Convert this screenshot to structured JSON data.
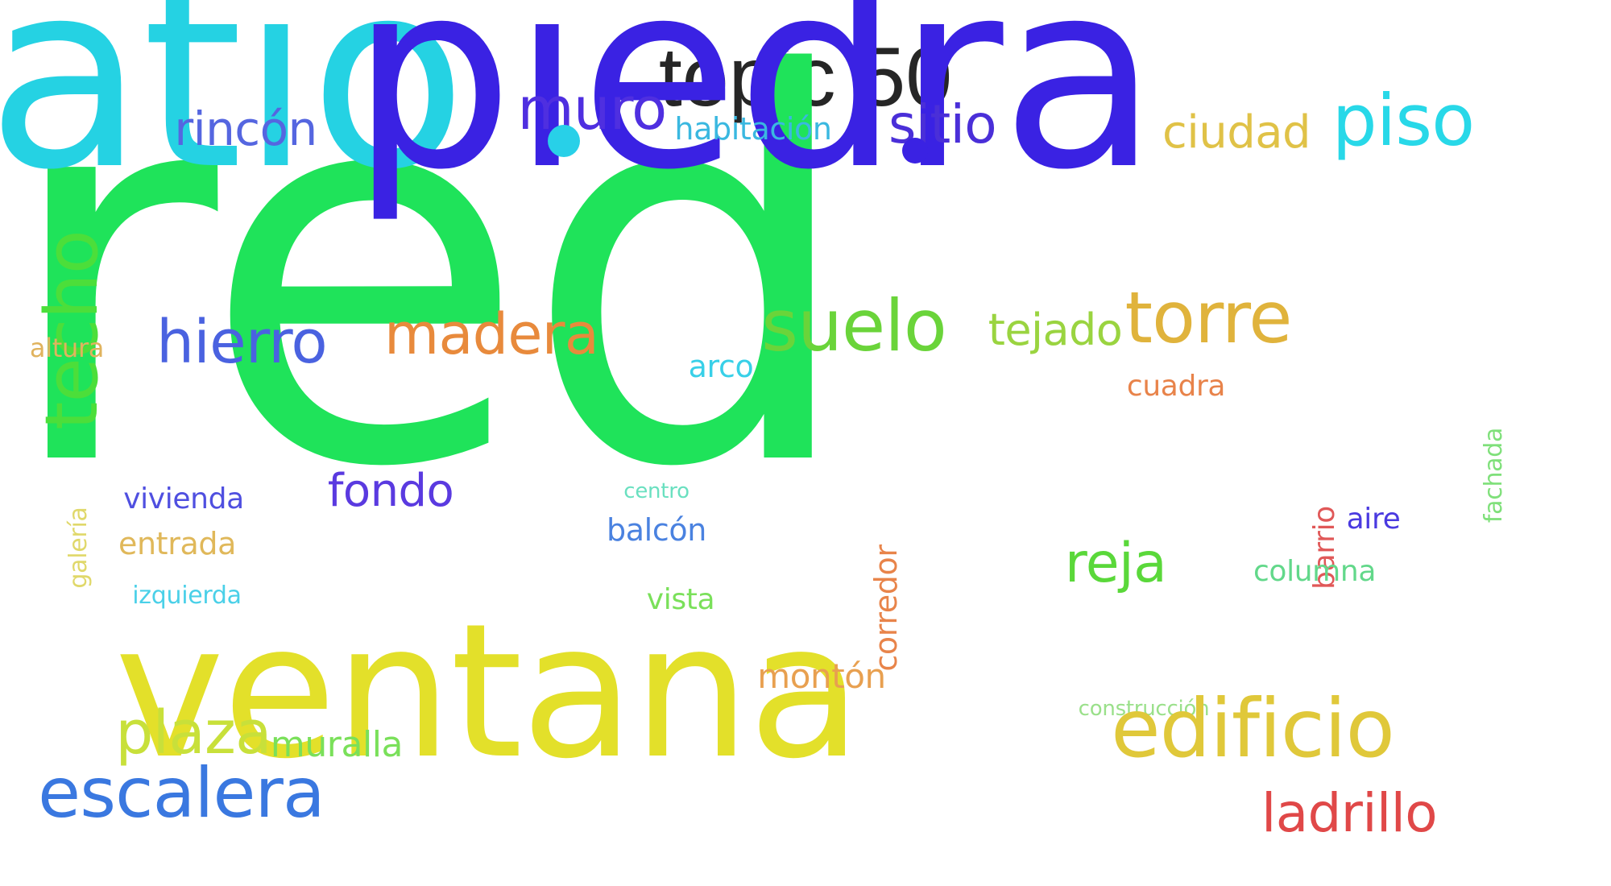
{
  "title": "topic 50",
  "words": [
    {
      "text": "pared",
      "color": "#1fe35a"
    },
    {
      "text": "patio",
      "color": "#25d2e3"
    },
    {
      "text": "piedra",
      "color": "#3a22e3"
    },
    {
      "text": "ventana",
      "color": "#e3e02a"
    },
    {
      "text": "techo",
      "color": "#4cde3a"
    },
    {
      "text": "rincón",
      "color": "#5566e0"
    },
    {
      "text": "muro",
      "color": "#4f2fe0"
    },
    {
      "text": "habitación",
      "color": "#3ab8e0"
    },
    {
      "text": "sitio",
      "color": "#4a2fd8"
    },
    {
      "text": "ciudad",
      "color": "#e0c247"
    },
    {
      "text": "piso",
      "color": "#28d8e8"
    },
    {
      "text": "hierro",
      "color": "#4a62e0"
    },
    {
      "text": "madera",
      "color": "#e88a3c"
    },
    {
      "text": "arco",
      "color": "#38d0e8"
    },
    {
      "text": "suelo",
      "color": "#6ad43a"
    },
    {
      "text": "tejado",
      "color": "#9ad440"
    },
    {
      "text": "torre",
      "color": "#e0b33c"
    },
    {
      "text": "altura",
      "color": "#e0b35e"
    },
    {
      "text": "cuadra",
      "color": "#e8834a"
    },
    {
      "text": "fachada",
      "color": "#7fe07a"
    },
    {
      "text": "galería",
      "color": "#e0d86a"
    },
    {
      "text": "vivienda",
      "color": "#4f4fe0"
    },
    {
      "text": "fondo",
      "color": "#5a3ae0"
    },
    {
      "text": "centro",
      "color": "#6ae0c0"
    },
    {
      "text": "corredor",
      "color": "#e8844a"
    },
    {
      "text": "barrio",
      "color": "#e05858"
    },
    {
      "text": "aire",
      "color": "#4a3ae0"
    },
    {
      "text": "entrada",
      "color": "#e0b85a"
    },
    {
      "text": "balcón",
      "color": "#4a82e0"
    },
    {
      "text": "reja",
      "color": "#5ad83a"
    },
    {
      "text": "columna",
      "color": "#62d88a"
    },
    {
      "text": "izquierda",
      "color": "#4ad0e8"
    },
    {
      "text": "vista",
      "color": "#7ae05a"
    },
    {
      "text": "montón",
      "color": "#e8a050"
    },
    {
      "text": "construcción",
      "color": "#9ae08a"
    },
    {
      "text": "plaza",
      "color": "#c8e03a"
    },
    {
      "text": "muralla",
      "color": "#7ae05a"
    },
    {
      "text": "edificio",
      "color": "#e0c83a"
    },
    {
      "text": "escalera",
      "color": "#3a78e0"
    },
    {
      "text": "ladrillo",
      "color": "#e04848"
    }
  ],
  "dots": [
    {
      "name": "dot-cyan",
      "color": "#28d0e8"
    },
    {
      "name": "dot-blue",
      "color": "#3a22e3"
    }
  ]
}
